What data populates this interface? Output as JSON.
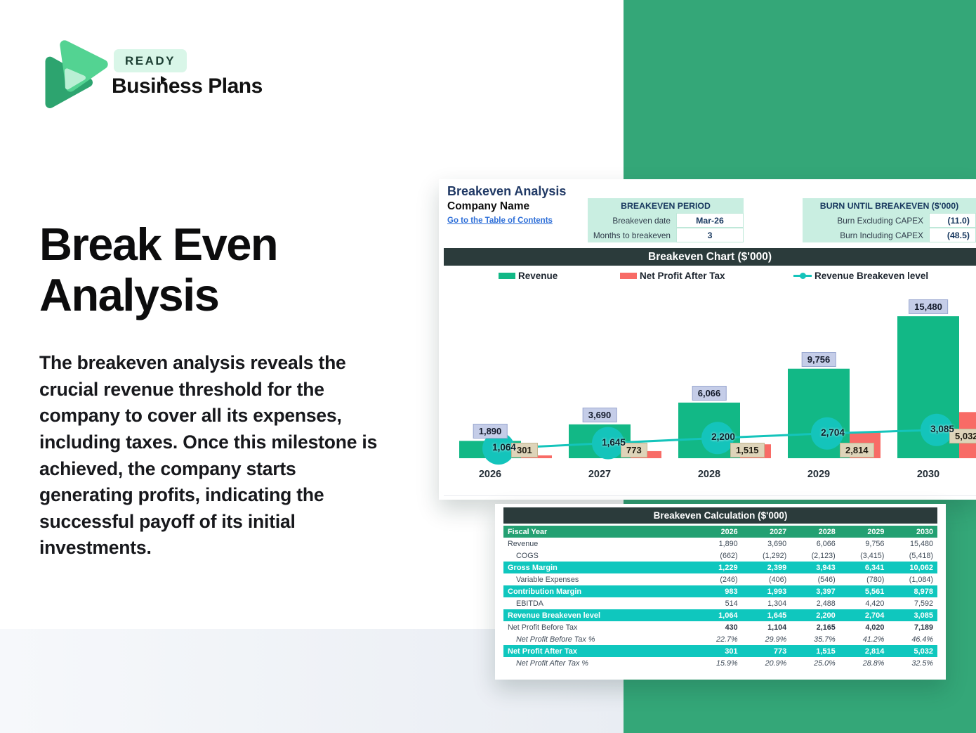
{
  "brand": {
    "badge": "READY",
    "name": "Business Plans"
  },
  "hero": {
    "title": "Break Even Analysis",
    "paragraph": "The breakeven analysis reveals the crucial revenue threshold for the company to cover all its expenses, including taxes. Once this milestone is achieved, the company starts generating profits, indicating the successful payoff of its initial investments."
  },
  "sheet": {
    "title": "Breakeven Analysis",
    "company": "Company Name",
    "link": "Go to the Table of Contents",
    "period_table": {
      "header": "BREAKEVEN PERIOD",
      "rows": [
        {
          "label": "Breakeven date",
          "value": "Mar-26"
        },
        {
          "label": "Months to breakeven",
          "value": "3"
        }
      ]
    },
    "burn_table": {
      "header": "BURN UNTIL BREAKEVEN ($'000)",
      "rows": [
        {
          "label": "Burn Excluding CAPEX",
          "value": "(11.0)"
        },
        {
          "label": "Burn Including CAPEX",
          "value": "(48.5)"
        }
      ]
    }
  },
  "chart_data": {
    "type": "bar",
    "title": "Breakeven Chart ($'000)",
    "categories": [
      "2026",
      "2027",
      "2028",
      "2029",
      "2030"
    ],
    "series": [
      {
        "name": "Revenue",
        "kind": "bar",
        "color": "#12b886",
        "values": [
          1890,
          3690,
          6066,
          9756,
          15480
        ]
      },
      {
        "name": "Net Profit After Tax",
        "kind": "bar",
        "color": "#f86b66",
        "values": [
          301,
          773,
          1515,
          2814,
          5032
        ]
      },
      {
        "name": "Revenue Breakeven level",
        "kind": "line",
        "color": "#14c4bb",
        "values": [
          1064,
          1645,
          2200,
          2704,
          3085
        ]
      }
    ],
    "ylim": [
      0,
      17000
    ],
    "grid": false,
    "legend_position": "top",
    "label_colors": {
      "revenue_box": "#c5cde8",
      "npat_box": "#ded4b9"
    }
  },
  "calc_table": {
    "title": "Breakeven Calculation ($'000)",
    "header_row": {
      "label": "Fiscal Year",
      "years": [
        "2026",
        "2027",
        "2028",
        "2029",
        "2030"
      ]
    },
    "rows": [
      {
        "label": "Revenue",
        "style": "plain",
        "values": [
          "1,890",
          "3,690",
          "6,066",
          "9,756",
          "15,480"
        ]
      },
      {
        "label": "COGS",
        "style": "indent",
        "values": [
          "(662)",
          "(1,292)",
          "(2,123)",
          "(3,415)",
          "(5,418)"
        ]
      },
      {
        "label": "Gross Margin",
        "style": "teal",
        "values": [
          "1,229",
          "2,399",
          "3,943",
          "6,341",
          "10,062"
        ]
      },
      {
        "label": "Variable Expenses",
        "style": "indent",
        "values": [
          "(246)",
          "(406)",
          "(546)",
          "(780)",
          "(1,084)"
        ]
      },
      {
        "label": "Contribution Margin",
        "style": "teal",
        "values": [
          "983",
          "1,993",
          "3,397",
          "5,561",
          "8,978"
        ]
      },
      {
        "label": "EBITDA",
        "style": "indent",
        "values": [
          "514",
          "1,304",
          "2,488",
          "4,420",
          "7,592"
        ]
      },
      {
        "label": "Revenue Breakeven level",
        "style": "teal",
        "values": [
          "1,064",
          "1,645",
          "2,200",
          "2,704",
          "3,085"
        ]
      },
      {
        "label": "Net Profit Before Tax",
        "style": "bold",
        "values": [
          "430",
          "1,104",
          "2,165",
          "4,020",
          "7,189"
        ]
      },
      {
        "label": "Net Profit Before Tax %",
        "style": "pct",
        "values": [
          "22.7%",
          "29.9%",
          "35.7%",
          "41.2%",
          "46.4%"
        ]
      },
      {
        "label": "Net Profit After Tax",
        "style": "teal",
        "values": [
          "301",
          "773",
          "1,515",
          "2,814",
          "5,032"
        ]
      },
      {
        "label": "Net Profit After Tax %",
        "style": "pct",
        "values": [
          "15.9%",
          "20.9%",
          "25.0%",
          "28.8%",
          "32.5%"
        ]
      }
    ]
  },
  "colors": {
    "band_green": "#34a778",
    "header_dark": "#2b3b3b",
    "mint": "#c9eee1",
    "table_green_row": "#23a072",
    "table_teal_row": "#0fc7be",
    "navy": "#1f3864",
    "link_blue": "#2e6fd8"
  }
}
